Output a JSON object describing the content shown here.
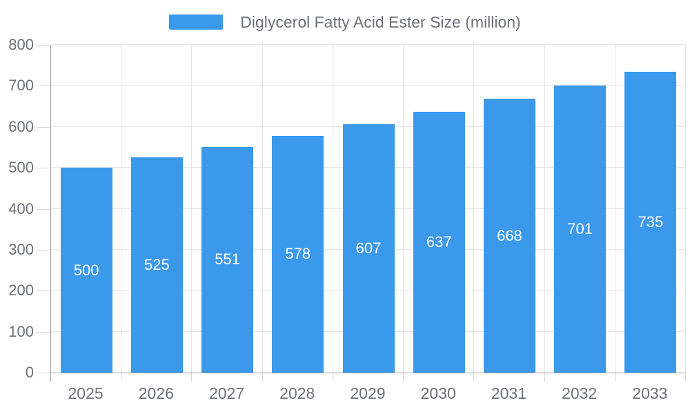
{
  "legend": {
    "label": "Diglycerol Fatty Acid Ester Size (million)"
  },
  "colors": {
    "bar": "#3B99EC",
    "axis_line": "#9A9DA3",
    "grid_line": "#E4E4E6",
    "tick_line": "#D6D6D9",
    "axis_text": "#6E7079",
    "value_label_text": "#FFFFFF",
    "background": "#FFFFFF"
  },
  "chart_data": {
    "type": "bar",
    "title": "Diglycerol Fatty Acid Ester Size (million)",
    "series_name": "Diglycerol Fatty Acid Ester Size (million)",
    "categories": [
      "2025",
      "2026",
      "2027",
      "2028",
      "2029",
      "2030",
      "2031",
      "2032",
      "2033"
    ],
    "values": [
      500,
      525,
      551,
      578,
      607,
      637,
      668,
      701,
      735
    ],
    "value_labels": [
      "500",
      "525",
      "551",
      "578",
      "607",
      "637",
      "668",
      "701",
      "735"
    ],
    "xlabel": "",
    "ylabel": "",
    "ylim": [
      0,
      800
    ],
    "ytick_interval": 100,
    "yticks": [
      0,
      100,
      200,
      300,
      400,
      500,
      600,
      700,
      800
    ],
    "grid": true,
    "legend_position": "top-center",
    "bar_labels_inside": true
  }
}
